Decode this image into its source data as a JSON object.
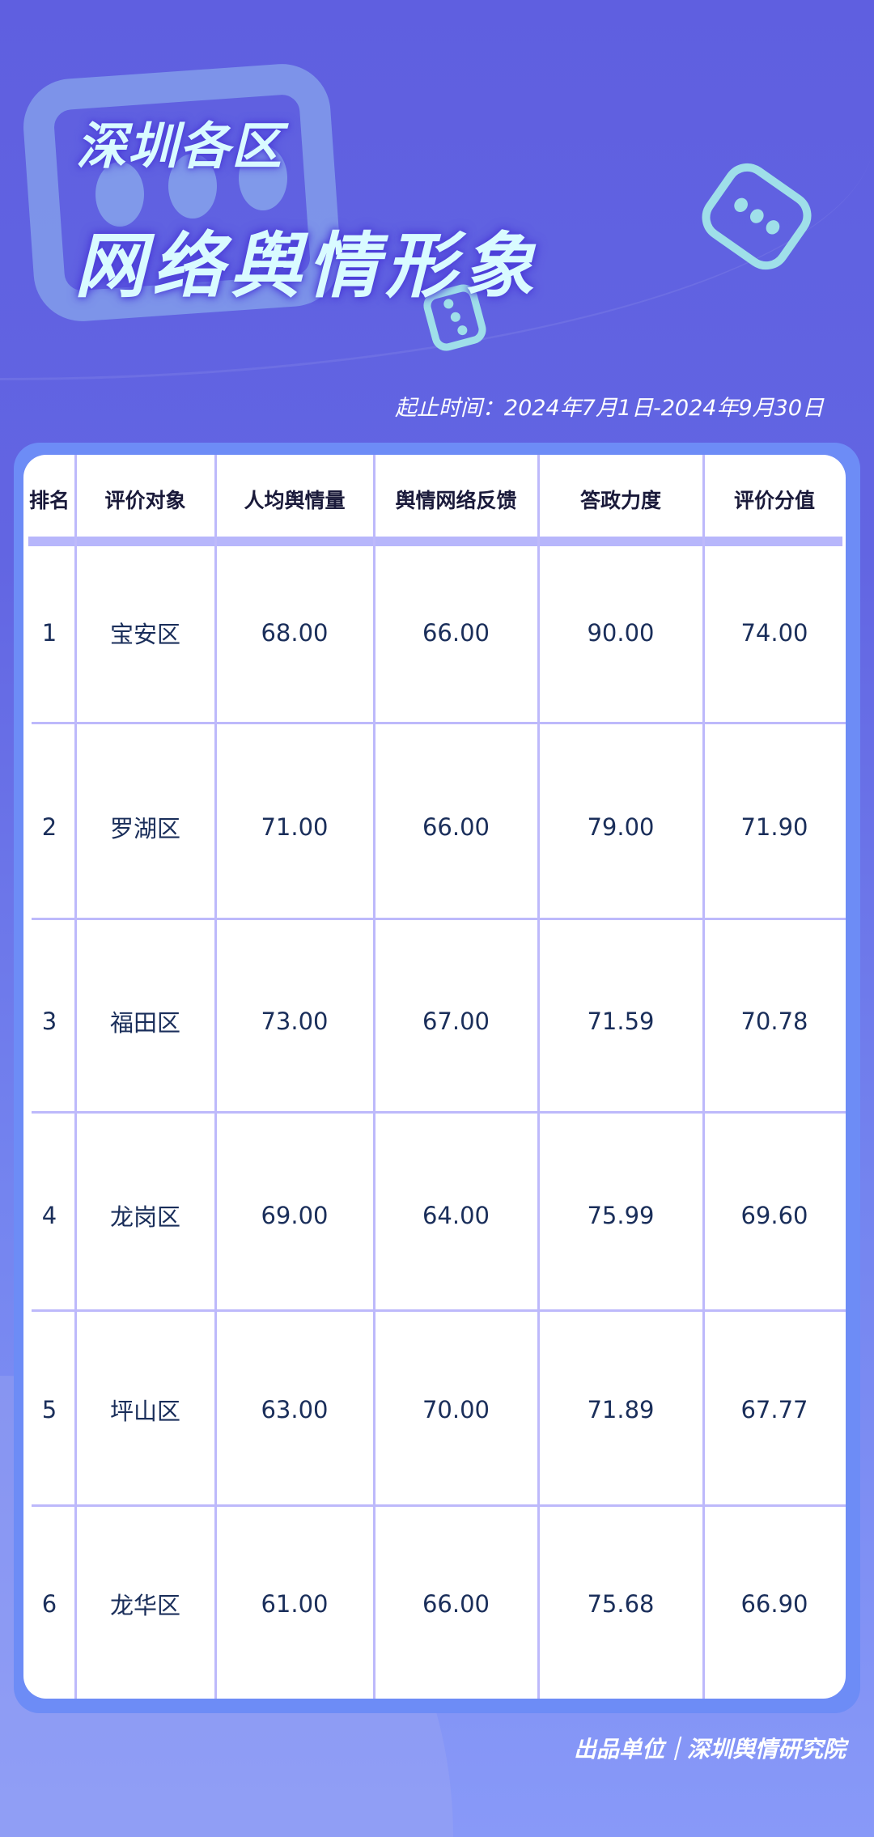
{
  "header": {
    "title_line1": "深圳各区",
    "title_line2": "网络舆情形象",
    "date_range": "起止时间：2024年7月1日-2024年9月30日"
  },
  "table": {
    "columns": [
      "排名",
      "评价对象",
      "人均舆情量",
      "舆情网络反馈",
      "答政力度",
      "评价分值"
    ],
    "rows": [
      [
        "1",
        "宝安区",
        "68.00",
        "66.00",
        "90.00",
        "74.00"
      ],
      [
        "2",
        "罗湖区",
        "71.00",
        "66.00",
        "79.00",
        "71.90"
      ],
      [
        "3",
        "福田区",
        "73.00",
        "67.00",
        "71.59",
        "70.78"
      ],
      [
        "4",
        "龙岗区",
        "69.00",
        "64.00",
        "75.99",
        "69.60"
      ],
      [
        "5",
        "坪山区",
        "63.00",
        "70.00",
        "71.89",
        "67.77"
      ],
      [
        "6",
        "龙华区",
        "61.00",
        "66.00",
        "75.68",
        "66.90"
      ]
    ]
  },
  "footer": {
    "publisher": "出品单位｜深圳舆情研究院"
  },
  "colors": {
    "background_top": "#5f5fe0",
    "background_bottom": "#8899f8",
    "card_border": "#6d8cf6",
    "grid_line": "#bdb9fb",
    "text": "#1a2e5a",
    "title": "#d9fbff"
  },
  "icons": [
    "chat-bubble-icon",
    "chat-bubble-icon",
    "chat-bubble-icon"
  ]
}
